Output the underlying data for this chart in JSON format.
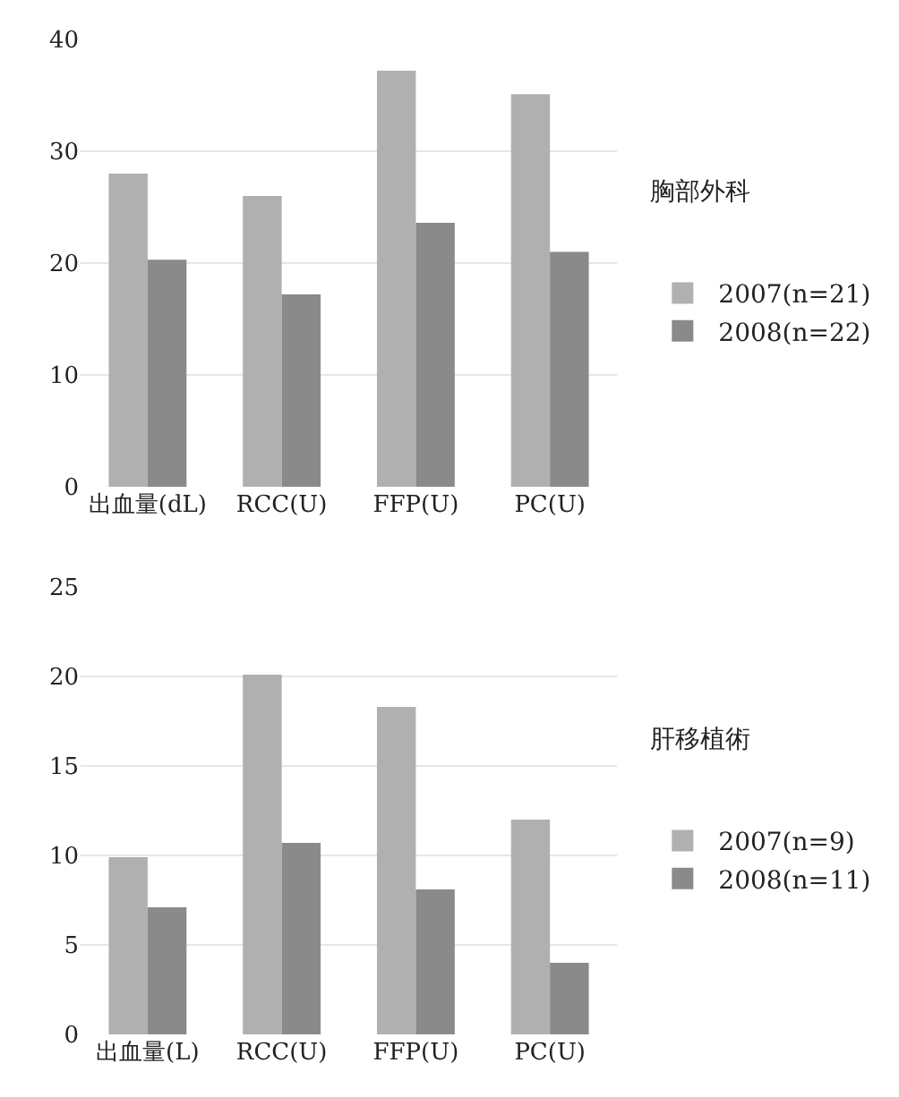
{
  "chart_data": [
    {
      "type": "bar",
      "legend_title": "胸部外科",
      "categories": [
        "出血量(dL)",
        "RCC(U)",
        "FFP(U)",
        "PC(U)"
      ],
      "series": [
        {
          "name": "2007(n=21)",
          "color": "#b0b0b0",
          "values": [
            28,
            26,
            37.2,
            35.1
          ]
        },
        {
          "name": "2008(n=22)",
          "color": "#8a8a8a",
          "values": [
            20.3,
            17.2,
            23.6,
            21
          ]
        }
      ],
      "ylim": [
        0,
        40
      ],
      "yticks": [
        0,
        10,
        20,
        30,
        40
      ],
      "grid": "y",
      "legend": "right"
    },
    {
      "type": "bar",
      "legend_title": "肝移植術",
      "categories": [
        "出血量(L)",
        "RCC(U)",
        "FFP(U)",
        "PC(U)"
      ],
      "series": [
        {
          "name": "2007(n=9)",
          "color": "#b0b0b0",
          "values": [
            9.9,
            20.1,
            18.3,
            12
          ]
        },
        {
          "name": "2008(n=11)",
          "color": "#8a8a8a",
          "values": [
            7.1,
            10.7,
            8.1,
            4
          ]
        }
      ],
      "ylim": [
        0,
        25
      ],
      "yticks": [
        0,
        5,
        10,
        15,
        20,
        25
      ],
      "grid": "y",
      "legend": "right"
    }
  ]
}
